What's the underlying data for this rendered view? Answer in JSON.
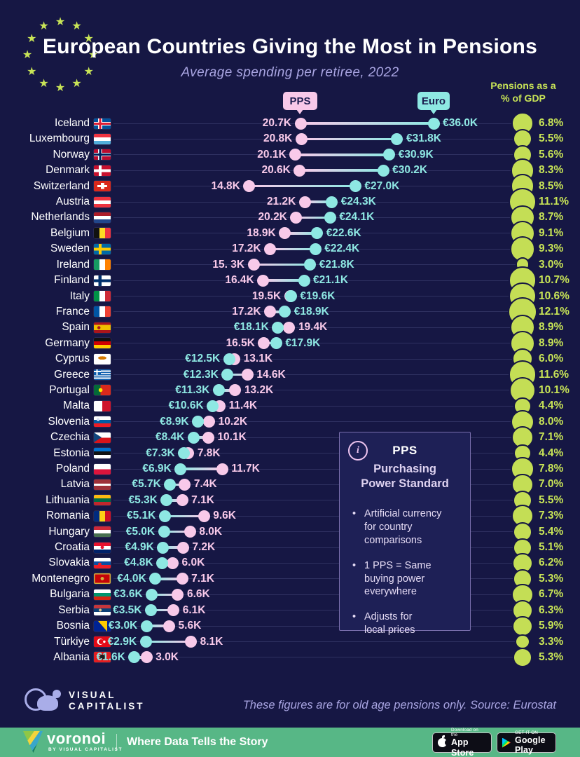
{
  "header": {
    "title": "European Countries Giving the Most in Pensions",
    "subtitle": "Average spending per retiree, 2022",
    "pps_tag": "PPS",
    "euro_tag": "Euro",
    "gdp_header": "Pensions as a\n% of GDP"
  },
  "chart_data": {
    "type": "dumbbell+bubble",
    "title": "European Countries Giving the Most in Pensions",
    "subtitle": "Average spending per retiree, 2022",
    "series": [
      "PPS (thousands)",
      "Euro (thousands)",
      "Pensions as a % of GDP"
    ],
    "unit": "thousands per retiree, 2022",
    "colors": {
      "pps": "#f8c9e9",
      "euro": "#8ee8e3",
      "gdp": "#c4de55",
      "background": "#161744"
    },
    "rows": [
      {
        "country": "Iceland",
        "flag": "is",
        "pps": 20.7,
        "pps_label": "20.7K",
        "euro": 36.0,
        "euro_label": "€36.0K",
        "gdp_pct": 6.8,
        "gdp_label": "6.8%"
      },
      {
        "country": "Luxembourg",
        "flag": "lu",
        "pps": 20.8,
        "pps_label": "20.8K",
        "euro": 31.8,
        "euro_label": "€31.8K",
        "gdp_pct": 5.5,
        "gdp_label": "5.5%"
      },
      {
        "country": "Norway",
        "flag": "no",
        "pps": 20.1,
        "pps_label": "20.1K",
        "euro": 30.9,
        "euro_label": "€30.9K",
        "gdp_pct": 5.6,
        "gdp_label": "5.6%"
      },
      {
        "country": "Denmark",
        "flag": "dk",
        "pps": 20.6,
        "pps_label": "20.6K",
        "euro": 30.2,
        "euro_label": "€30.2K",
        "gdp_pct": 8.3,
        "gdp_label": "8.3%"
      },
      {
        "country": "Switzerland",
        "flag": "ch",
        "pps": 14.8,
        "pps_label": "14.8K",
        "euro": 27.0,
        "euro_label": "€27.0K",
        "gdp_pct": 8.5,
        "gdp_label": "8.5%"
      },
      {
        "country": "Austria",
        "flag": "at",
        "pps": 21.2,
        "pps_label": "21.2K",
        "euro": 24.3,
        "euro_label": "€24.3K",
        "gdp_pct": 11.1,
        "gdp_label": "11.1%"
      },
      {
        "country": "Netherlands",
        "flag": "nl",
        "pps": 20.2,
        "pps_label": "20.2K",
        "euro": 24.1,
        "euro_label": "€24.1K",
        "gdp_pct": 8.7,
        "gdp_label": "8.7%"
      },
      {
        "country": "Belgium",
        "flag": "be",
        "pps": 18.9,
        "pps_label": "18.9K",
        "euro": 22.6,
        "euro_label": "€22.6K",
        "gdp_pct": 9.1,
        "gdp_label": "9.1%"
      },
      {
        "country": "Sweden",
        "flag": "se",
        "pps": 17.2,
        "pps_label": "17.2K",
        "euro": 22.4,
        "euro_label": "€22.4K",
        "gdp_pct": 9.3,
        "gdp_label": "9.3%"
      },
      {
        "country": "Ireland",
        "flag": "ie",
        "pps": 15.3,
        "pps_label": "15. 3K",
        "euro": 21.8,
        "euro_label": "€21.8K",
        "gdp_pct": 3.0,
        "gdp_label": "3.0%"
      },
      {
        "country": "Finland",
        "flag": "fi",
        "pps": 16.4,
        "pps_label": "16.4K",
        "euro": 21.1,
        "euro_label": "€21.1K",
        "gdp_pct": 10.7,
        "gdp_label": "10.7%"
      },
      {
        "country": "Italy",
        "flag": "it",
        "pps": 19.5,
        "pps_label": "19.5K",
        "euro": 19.6,
        "euro_label": "€19.6K",
        "gdp_pct": 10.6,
        "gdp_label": "10.6%"
      },
      {
        "country": "France",
        "flag": "fr",
        "pps": 17.2,
        "pps_label": "17.2K",
        "euro": 18.9,
        "euro_label": "€18.9K",
        "gdp_pct": 12.1,
        "gdp_label": "12.1%"
      },
      {
        "country": "Spain",
        "flag": "es",
        "pps": 19.4,
        "pps_label": "19.4K",
        "euro": 18.1,
        "euro_label": "€18.1K",
        "gdp_pct": 8.9,
        "gdp_label": "8.9%"
      },
      {
        "country": "Germany",
        "flag": "de",
        "pps": 16.5,
        "pps_label": "16.5K",
        "euro": 17.9,
        "euro_label": "€17.9K",
        "gdp_pct": 8.9,
        "gdp_label": "8.9%"
      },
      {
        "country": "Cyprus",
        "flag": "cy",
        "pps": 13.1,
        "pps_label": "13.1K",
        "euro": 12.5,
        "euro_label": "€12.5K",
        "gdp_pct": 6.0,
        "gdp_label": "6.0%"
      },
      {
        "country": "Greece",
        "flag": "gr",
        "pps": 14.6,
        "pps_label": "14.6K",
        "euro": 12.3,
        "euro_label": "€12.3K",
        "gdp_pct": 11.6,
        "gdp_label": "11.6%"
      },
      {
        "country": "Portugal",
        "flag": "pt",
        "pps": 13.2,
        "pps_label": "13.2K",
        "euro": 11.3,
        "euro_label": "€11.3K",
        "gdp_pct": 10.1,
        "gdp_label": "10.1%"
      },
      {
        "country": "Malta",
        "flag": "mt",
        "pps": 11.4,
        "pps_label": "11.4K",
        "euro": 10.6,
        "euro_label": "€10.6K",
        "gdp_pct": 4.4,
        "gdp_label": "4.4%"
      },
      {
        "country": "Slovenia",
        "flag": "si",
        "pps": 10.2,
        "pps_label": "10.2K",
        "euro": 8.9,
        "euro_label": "€8.9K",
        "gdp_pct": 8.0,
        "gdp_label": "8.0%"
      },
      {
        "country": "Czechia",
        "flag": "cz",
        "pps": 10.1,
        "pps_label": "10.1K",
        "euro": 8.4,
        "euro_label": "€8.4K",
        "gdp_pct": 7.1,
        "gdp_label": "7.1%"
      },
      {
        "country": "Estonia",
        "flag": "ee",
        "pps": 7.8,
        "pps_label": "7.8K",
        "euro": 7.3,
        "euro_label": "€7.3K",
        "gdp_pct": 4.4,
        "gdp_label": "4.4%"
      },
      {
        "country": "Poland",
        "flag": "pl",
        "pps": 11.7,
        "pps_label": "11.7K",
        "euro": 6.9,
        "euro_label": "€6.9K",
        "gdp_pct": 7.8,
        "gdp_label": "7.8%"
      },
      {
        "country": "Latvia",
        "flag": "lv",
        "pps": 7.4,
        "pps_label": "7.4K",
        "euro": 5.7,
        "euro_label": "€5.7K",
        "gdp_pct": 7.0,
        "gdp_label": "7.0%"
      },
      {
        "country": "Lithuania",
        "flag": "lt",
        "pps": 7.1,
        "pps_label": "7.1K",
        "euro": 5.3,
        "euro_label": "€5.3K",
        "gdp_pct": 5.5,
        "gdp_label": "5.5%"
      },
      {
        "country": "Romania",
        "flag": "ro",
        "pps": 9.6,
        "pps_label": "9.6K",
        "euro": 5.1,
        "euro_label": "€5.1K",
        "gdp_pct": 7.3,
        "gdp_label": "7.3%"
      },
      {
        "country": "Hungary",
        "flag": "hu",
        "pps": 8.0,
        "pps_label": "8.0K",
        "euro": 5.0,
        "euro_label": "€5.0K",
        "gdp_pct": 5.4,
        "gdp_label": "5.4%"
      },
      {
        "country": "Croatia",
        "flag": "hr",
        "pps": 7.2,
        "pps_label": "7.2K",
        "euro": 4.9,
        "euro_label": "€4.9K",
        "gdp_pct": 5.1,
        "gdp_label": "5.1%"
      },
      {
        "country": "Slovakia",
        "flag": "sk",
        "pps": 6.0,
        "pps_label": "6.0K",
        "euro": 4.8,
        "euro_label": "€4.8K",
        "gdp_pct": 6.2,
        "gdp_label": "6.2%"
      },
      {
        "country": "Montenegro",
        "flag": "me",
        "pps": 7.1,
        "pps_label": "7.1K",
        "euro": 4.0,
        "euro_label": "€4.0K",
        "gdp_pct": 5.3,
        "gdp_label": "5.3%"
      },
      {
        "country": "Bulgaria",
        "flag": "bg",
        "pps": 6.6,
        "pps_label": "6.6K",
        "euro": 3.6,
        "euro_label": "€3.6K",
        "gdp_pct": 6.7,
        "gdp_label": "6.7%"
      },
      {
        "country": "Serbia",
        "flag": "rs",
        "pps": 6.1,
        "pps_label": "6.1K",
        "euro": 3.5,
        "euro_label": "€3.5K",
        "gdp_pct": 6.3,
        "gdp_label": "6.3%"
      },
      {
        "country": "Bosnia",
        "flag": "ba",
        "pps": 5.6,
        "pps_label": "5.6K",
        "euro": 3.0,
        "euro_label": "€3.0K",
        "gdp_pct": 5.9,
        "gdp_label": "5.9%"
      },
      {
        "country": "Türkiye",
        "flag": "tr",
        "pps": 8.1,
        "pps_label": "8.1K",
        "euro": 2.9,
        "euro_label": "€2.9K",
        "gdp_pct": 3.3,
        "gdp_label": "3.3%"
      },
      {
        "country": "Albania",
        "flag": "al",
        "pps": 3.0,
        "pps_label": "3.0K",
        "euro": 1.6,
        "euro_label": "€1.6K",
        "gdp_pct": 5.3,
        "gdp_label": "5.3%"
      }
    ]
  },
  "infobox": {
    "icon": "info-icon",
    "icon_glyph": "i",
    "title": "PPS",
    "subtitle": "Purchasing\nPower Standard",
    "bullets": [
      "Artificial currency\nfor country\ncomparisons",
      "1 PPS = Same\nbuying power\neverywhere",
      "Adjusts for\nlocal prices"
    ]
  },
  "footer": {
    "brand_line1": "VISUAL",
    "brand_line2": "CAPITALIST",
    "note": "These figures are for old age pensions only. Source: Eurostat"
  },
  "bottombar": {
    "brand": "voronoi",
    "brand_sub": "BY VISUAL CAPITALIST",
    "tagline": "Where Data Tells the Story",
    "appstore_line1": "Download on the",
    "appstore_line2": "App Store",
    "gplay_line1": "GET IT ON",
    "gplay_line2": "Google Play"
  }
}
